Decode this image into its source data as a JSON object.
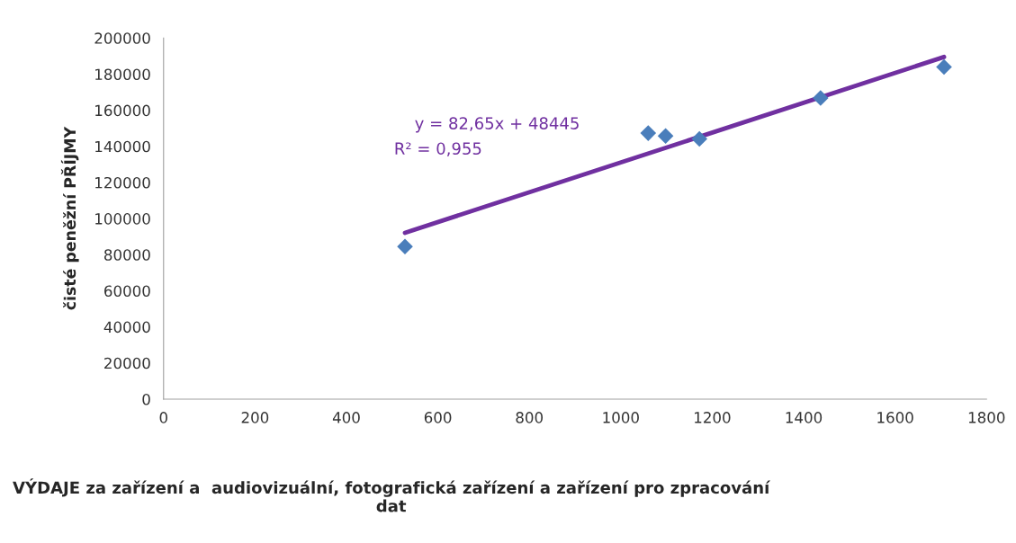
{
  "chart_data": {
    "type": "scatter",
    "xlabel": "VÝDAJE za zařízení a  audiovizuální, fotografická zařízení a zařízení pro zpracování dat",
    "ylabel": "čisté peněžní PŘÍJMY",
    "x": [
      528,
      1060,
      1098,
      1172,
      1437,
      1707
    ],
    "series": [
      {
        "color": "#4a7ebb",
        "marker": "diamond",
        "values": [
          84500,
          147300,
          145700,
          144100,
          166800,
          184000
        ]
      },
      {
        "type": "line",
        "color": "#7030a0",
        "marker": "none",
        "line_style": "solid",
        "x": [
          528,
          1707
        ],
        "values": [
          92100,
          189500
        ]
      }
    ],
    "annotations": [
      "y = 82,65x + 48445",
      "R² = 0,955"
    ],
    "xlim": [
      0,
      1800
    ],
    "xticks": [
      0,
      200,
      400,
      600,
      800,
      1000,
      1200,
      1400,
      1600,
      1800
    ],
    "ylim": [
      0,
      200000
    ],
    "yticks": [
      0,
      20000,
      40000,
      60000,
      80000,
      100000,
      120000,
      140000,
      160000,
      180000,
      200000
    ],
    "grid": false,
    "legend": false
  }
}
